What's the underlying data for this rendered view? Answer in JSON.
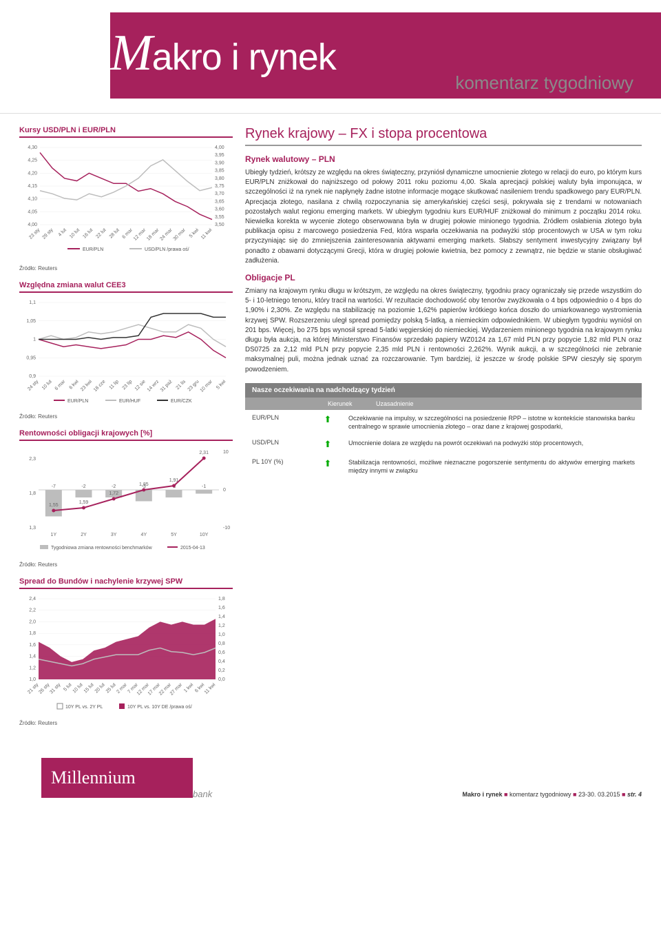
{
  "masthead": {
    "title_pre": "M",
    "title_rest": "akro i rynek",
    "subtitle": "komentarz tygodniowy"
  },
  "main": {
    "title": "Rynek krajowy – FX i stopa procentowa",
    "section1_head": "Rynek walutowy – PLN",
    "section1_body": "Ubiegły tydzień, krótszy ze względu na okres świąteczny, przyniósł dynamiczne umocnienie złotego w relacji do euro, po którym kurs EUR/PLN zniżkował do najniższego od połowy 2011 roku poziomu 4,00. Skala aprecjacji polskiej waluty była imponująca, w szczególności iż na rynek nie napłynęły żadne istotne informacje mogące skutkować nasileniem trendu spadkowego pary EUR/PLN. Aprecjacja złotego, nasilana z chwilą rozpoczynania się amerykańskiej części sesji, pokrywała się z trendami w notowaniach pozostałych walut regionu emerging markets. W ubiegłym tygodniu kurs EUR/HUF zniżkował do minimum z początku 2014 roku. Niewielka korekta w wycenie złotego obserwowana była w drugiej połowie minionego tygodnia. Źródłem osłabienia złotego była publikacja opisu z marcowego posiedzenia Fed, która wsparła oczekiwania na podwyżki stóp procentowych w USA w tym roku przyczyniając się do zmniejszenia zainteresowania aktywami emerging markets. Słabszy sentyment inwestycyjny związany był ponadto z obawami dotyczącymi Grecji, która w drugiej połowie kwietnia, bez pomocy z zewnątrz, nie będzie w stanie obsługiwać zadłużenia.",
    "section2_head": "Obligacje PL",
    "section2_body": "Zmiany na krajowym rynku długu w krótszym, ze względu na okres świąteczny, tygodniu pracy ograniczały się przede wszystkim do 5- i 10-letniego tenoru, który tracił na wartości. W rezultacie dochodowość oby tenorów zwyżkowała o 4 bps odpowiednio o 4 bps do 1,90% i 2,30%. Ze względu na stabilizację na poziomie 1,62% papierów krótkiego końca doszło do umiarkowanego wystromienia krzywej SPW. Rozszerzeniu uległ spread pomiędzy polską 5-latką, a niemieckim odpowiednikiem. W ubiegłym tygodniu wyniósł on 201 bps. Więcej, bo 275 bps wynosił spread 5-latki węgierskiej do niemieckiej. Wydarzeniem minionego tygodnia na krajowym rynku długu była aukcja, na której Ministerstwo Finansów sprzedało papiery WZ0124 za 1,67 mld PLN przy popycie 1,82 mld PLN oraz DS0725 za 2,12 mld PLN przy popycie 2,35 mld PLN i rentowności 2,262%. Wynik aukcji, a w szczególności nie zebranie maksymalnej puli, można jednak uznać za rozczarowanie. Tym bardziej, iż jeszcze w środę polskie SPW cieszyły się sporym powodzeniem."
  },
  "expectations": {
    "header": "Nasze oczekiwania na nadchodzący tydzień",
    "col_direction": "Kierunek",
    "col_reason": "Uzasadnienie",
    "rows": [
      {
        "label": "EUR/PLN",
        "arrow": "⬆",
        "desc": "Oczekiwanie na impulsy, w szczególności na posiedzenie RPP – istotne w kontekście stanowiska banku centralnego w sprawie umocnienia złotego – oraz dane z krajowej gospodarki,"
      },
      {
        "label": "USD/PLN",
        "arrow": "⬆",
        "desc": "Umocnienie dolara ze względu na powrót oczekiwań na podwyżki stóp procentowych,"
      },
      {
        "label": "PL 10Y (%)",
        "arrow": "⬆",
        "desc": "Stabilizacja rentowności, możliwe nieznaczne pogorszenie sentymentu do aktywów emerging markets między innymi w związku"
      }
    ]
  },
  "chart1": {
    "title": "Kursy USD/PLN i EUR/PLN",
    "source": "Źródło: Reuters",
    "y_left": {
      "min": 4.0,
      "max": 4.3,
      "ticks": [
        4.0,
        4.05,
        4.1,
        4.15,
        4.2,
        4.25,
        4.3
      ]
    },
    "y_right": {
      "min": 3.5,
      "max": 4.0,
      "ticks": [
        3.5,
        3.55,
        3.6,
        3.65,
        3.7,
        3.75,
        3.8,
        3.85,
        3.9,
        3.95,
        4.0
      ]
    },
    "x_labels": [
      "23 sty",
      "29 sty",
      "4 lut",
      "10 lut",
      "16 lut",
      "22 lut",
      "28 lut",
      "6 mar",
      "12 mar",
      "18 mar",
      "24 mar",
      "30 mar",
      "5 kwi",
      "11 kwi"
    ],
    "series": [
      {
        "name": "EUR/PLN",
        "color": "#a6215c",
        "axis": "left",
        "values": [
          4.28,
          4.22,
          4.18,
          4.17,
          4.2,
          4.18,
          4.16,
          4.16,
          4.13,
          4.14,
          4.12,
          4.09,
          4.07,
          4.04,
          4.02
        ]
      },
      {
        "name": "USD/PLN /prawa oś/",
        "color": "#bdbdbd",
        "axis": "right",
        "values": [
          3.72,
          3.7,
          3.67,
          3.66,
          3.7,
          3.68,
          3.71,
          3.75,
          3.8,
          3.88,
          3.92,
          3.85,
          3.78,
          3.72,
          3.74
        ]
      }
    ],
    "legend": [
      "EUR/PLN",
      "USD/PLN /prawa oś/"
    ]
  },
  "chart2": {
    "title": "Względna zmiana walut CEE3",
    "source": "Źródło: Reuters",
    "y": {
      "min": 0.9,
      "max": 1.1,
      "ticks": [
        0.9,
        0.95,
        1.0,
        1.05,
        1.1
      ]
    },
    "x_labels": [
      "24 sty",
      "10 lut",
      "6 mar",
      "6 kwi",
      "23 kwi",
      "18 cze",
      "11 lip",
      "23 lip",
      "12 sie",
      "14 wrz",
      "31 paź",
      "21 lis",
      "23 gru",
      "10 mar",
      "5 kwi"
    ],
    "series": [
      {
        "name": "EUR/PLN",
        "color": "#a6215c",
        "values": [
          1.0,
          0.99,
          0.98,
          0.985,
          0.98,
          0.975,
          0.98,
          0.985,
          1.0,
          1.0,
          1.01,
          1.005,
          1.02,
          1.0,
          0.97,
          0.95
        ]
      },
      {
        "name": "EUR/HUF",
        "color": "#bdbdbd",
        "values": [
          1.0,
          1.01,
          1.0,
          1.005,
          1.02,
          1.015,
          1.02,
          1.03,
          1.04,
          1.03,
          1.02,
          1.02,
          1.04,
          1.03,
          1.0,
          0.98
        ]
      },
      {
        "name": "EUR/CZK",
        "color": "#333333",
        "values": [
          1.0,
          1.0,
          1.0,
          1.0,
          1.005,
          1.0,
          1.005,
          1.005,
          1.01,
          1.06,
          1.07,
          1.07,
          1.07,
          1.07,
          1.06,
          1.06
        ]
      }
    ],
    "legend": [
      "EUR/PLN",
      "EUR/HUF",
      "EUR/CZK"
    ]
  },
  "chart3": {
    "title": "Rentowności obligacji krajowych [%]",
    "source": "Źródło: Reuters",
    "categories": [
      "1Y",
      "2Y",
      "3Y",
      "4Y",
      "5Y",
      "10Y"
    ],
    "bars": {
      "name": "Tygodniowa zmiana rentowności benchmarków",
      "color": "#bdbdbd",
      "values": [
        -7,
        -2,
        -2,
        -3,
        -2,
        -1
      ],
      "ylim": [
        -10,
        10
      ]
    },
    "line": {
      "name": "2015-04-13",
      "color": "#a6215c",
      "values": [
        1.55,
        1.59,
        1.72,
        1.85,
        1.91,
        2.31
      ],
      "ylim": [
        1.3,
        2.4
      ]
    },
    "bar_labels": [
      "-7",
      "-2",
      "-2",
      "-3",
      "-2",
      "-1"
    ],
    "line_labels": [
      "1,55",
      "1,59",
      "1,72",
      "1,85",
      "1,91",
      "2,31"
    ],
    "legend": [
      "Tygodniowa zmiana rentowności benchmarków",
      "2015-04-13"
    ]
  },
  "chart4": {
    "title": "Spread do Bundów i nachylenie krzywej SPW",
    "source": "Źródło: Reuters",
    "y_left": {
      "min": 1.0,
      "max": 2.4,
      "ticks": [
        1.0,
        1.2,
        1.4,
        1.6,
        1.8,
        2.0,
        2.2,
        2.4
      ]
    },
    "y_right": {
      "min": 0.0,
      "max": 1.8,
      "ticks": [
        0.0,
        0.2,
        0.4,
        0.6,
        0.8,
        1.0,
        1.2,
        1.4,
        1.6,
        1.8
      ]
    },
    "x_labels": [
      "21 sty",
      "26 sty",
      "31 sty",
      "5 lut",
      "10 lut",
      "15 lut",
      "20 lut",
      "25 lut",
      "2 mar",
      "7 mar",
      "12 mar",
      "17 mar",
      "22 mar",
      "27 mar",
      "1 kwi",
      "6 kwi",
      "11 kwi"
    ],
    "series_area": {
      "name": "10Y PL vs. 10Y DE /prawa oś/",
      "color": "#a6215c",
      "values": [
        1.65,
        1.55,
        1.4,
        1.3,
        1.35,
        1.5,
        1.55,
        1.65,
        1.7,
        1.75,
        1.9,
        2.0,
        1.95,
        2.0,
        1.95,
        1.95,
        2.05
      ]
    },
    "series_line": {
      "name": "10Y PL vs. 2Y PL",
      "color": "#bdbdbd",
      "values": [
        0.45,
        0.4,
        0.35,
        0.3,
        0.35,
        0.45,
        0.5,
        0.55,
        0.55,
        0.55,
        0.65,
        0.7,
        0.62,
        0.6,
        0.55,
        0.6,
        0.7
      ]
    },
    "legend": [
      "10Y PL vs. 2Y PL",
      "10Y PL vs. 10Y DE /prawa oś/"
    ]
  },
  "footer": {
    "logo": "Millennium",
    "logo_sub": "bank",
    "line_pre": "Makro i rynek",
    "line_mid": "komentarz tygodniowy",
    "line_date": "23-30. 03.2015",
    "line_page": "str. 4"
  }
}
